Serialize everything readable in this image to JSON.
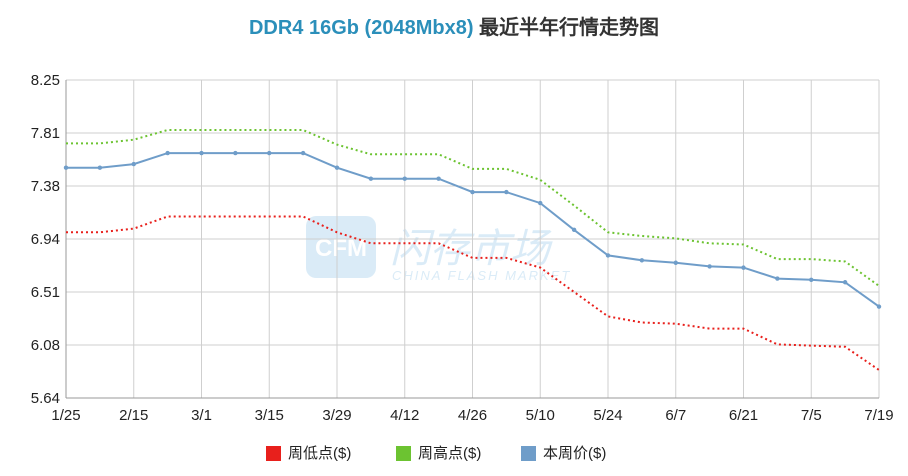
{
  "chart_data": {
    "type": "line",
    "title_part1": "DDR4 16Gb (2048Mbx8)",
    "title_part2": " 最近半年行情走势图",
    "title_color1": "#2b8fba",
    "title_color2": "#333333",
    "y_ticks": [
      "8.25",
      "7.81",
      "7.38",
      "6.94",
      "6.51",
      "6.08",
      "5.64"
    ],
    "ylim": [
      5.64,
      8.25
    ],
    "x_ticks": [
      "1/25",
      "2/15",
      "3/1",
      "3/15",
      "3/29",
      "4/12",
      "4/26",
      "5/10",
      "5/24",
      "6/7",
      "6/21",
      "7/5",
      "7/19"
    ],
    "grid": true,
    "legend_position": "bottom",
    "watermark_text": "闪存市场",
    "watermark_subtext": "CHINA FLASH MARKET",
    "watermark_logo_text": "CFM",
    "series": [
      {
        "name": "周低点($)",
        "color": "#e8201c",
        "dashed": true,
        "markers": false,
        "values": [
          7.0,
          7.0,
          7.03,
          7.13,
          7.13,
          7.13,
          7.13,
          7.13,
          7.0,
          6.91,
          6.91,
          6.91,
          6.79,
          6.79,
          6.71,
          6.51,
          6.31,
          6.26,
          6.25,
          6.21,
          6.21,
          6.08,
          6.07,
          6.06,
          5.87
        ]
      },
      {
        "name": "周高点($)",
        "color": "#6cc331",
        "dashed": true,
        "markers": false,
        "values": [
          7.73,
          7.73,
          7.76,
          7.84,
          7.84,
          7.84,
          7.84,
          7.84,
          7.72,
          7.64,
          7.64,
          7.64,
          7.52,
          7.52,
          7.43,
          7.22,
          7.0,
          6.97,
          6.95,
          6.91,
          6.9,
          6.78,
          6.78,
          6.76,
          6.56
        ]
      },
      {
        "name": "本周价($)",
        "color": "#6f9dc9",
        "dashed": false,
        "markers": true,
        "values": [
          7.53,
          7.53,
          7.56,
          7.65,
          7.65,
          7.65,
          7.65,
          7.65,
          7.53,
          7.44,
          7.44,
          7.44,
          7.33,
          7.33,
          7.24,
          7.02,
          6.81,
          6.77,
          6.75,
          6.72,
          6.71,
          6.62,
          6.61,
          6.59,
          6.39
        ]
      }
    ]
  }
}
